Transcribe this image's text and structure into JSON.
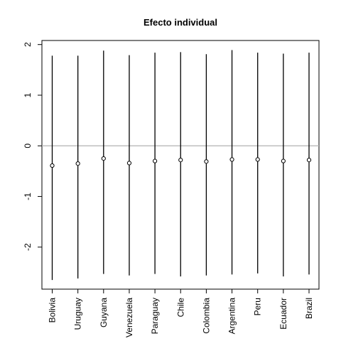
{
  "chart_data": {
    "type": "errorbar",
    "title": "Efecto individual",
    "xlabel": "",
    "ylabel": "",
    "categories": [
      "Bolivia",
      "Uruguay",
      "Guyana",
      "Venezuela",
      "Paraguay",
      "Chile",
      "Colombia",
      "Argentina",
      "Peru",
      "Ecuador",
      "Brazil"
    ],
    "series": [
      {
        "estimate": [
          -0.39,
          -0.35,
          -0.25,
          -0.34,
          -0.3,
          -0.28,
          -0.31,
          -0.27,
          -0.27,
          -0.3,
          -0.28
        ],
        "lower": [
          -2.65,
          -2.62,
          -2.53,
          -2.56,
          -2.53,
          -2.58,
          -2.56,
          -2.54,
          -2.52,
          -2.58,
          -2.54
        ],
        "upper": [
          1.78,
          1.78,
          1.88,
          1.79,
          1.84,
          1.85,
          1.81,
          1.89,
          1.84,
          1.82,
          1.84
        ]
      }
    ],
    "reference_line": {
      "y": 0,
      "color": "#b3b3b3"
    },
    "ylim": [
      -2.83,
      2.08
    ],
    "yticks": [
      2,
      1,
      0,
      -1,
      -2
    ],
    "grid": false,
    "legend": "none"
  }
}
